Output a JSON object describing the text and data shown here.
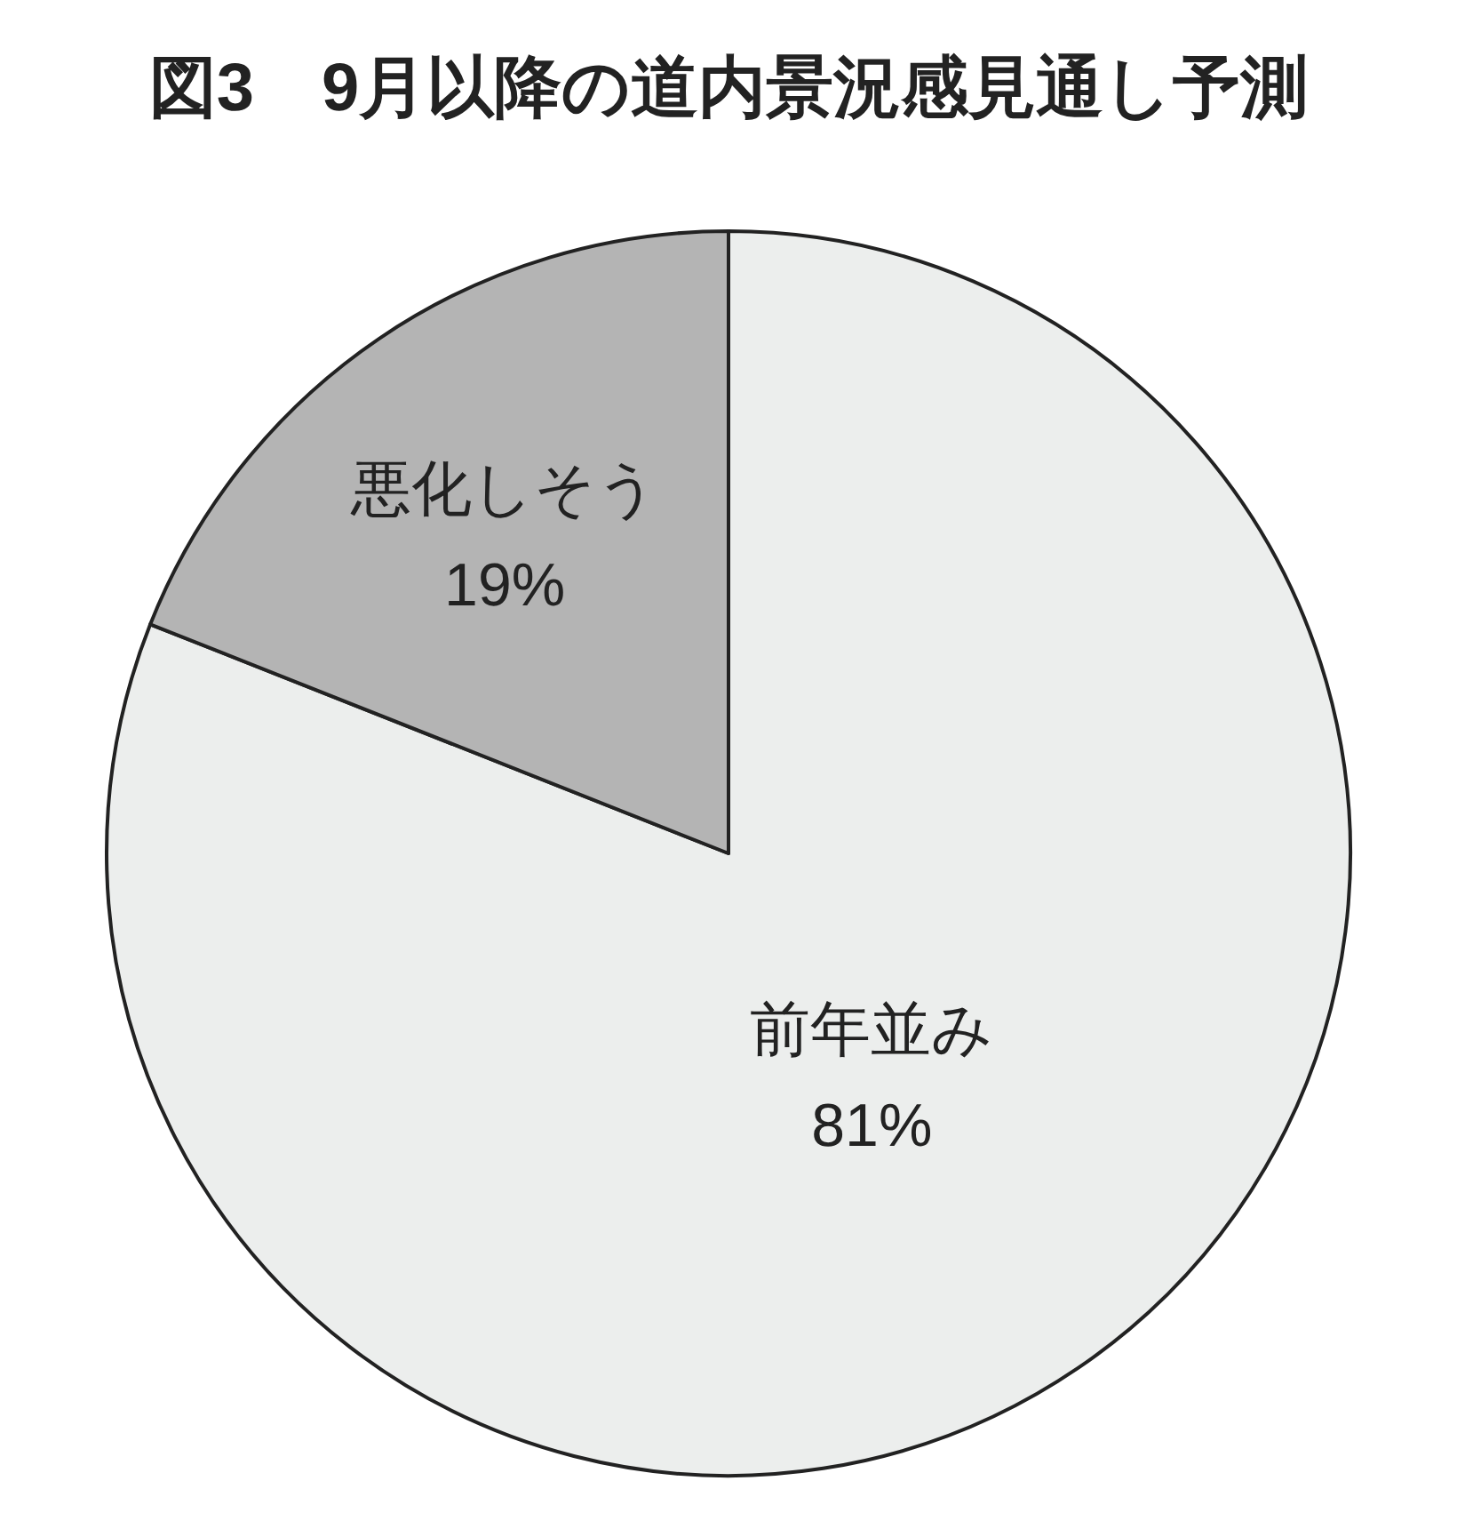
{
  "chart_data": {
    "type": "pie",
    "title": "図3　9月以降の道内景況感見通し予測",
    "categories": [
      "前年並み",
      "悪化しそう"
    ],
    "values": [
      81,
      19
    ],
    "colors": [
      "#eceeed",
      "#b4b4b4"
    ],
    "value_labels": [
      "81%",
      "19%"
    ]
  }
}
